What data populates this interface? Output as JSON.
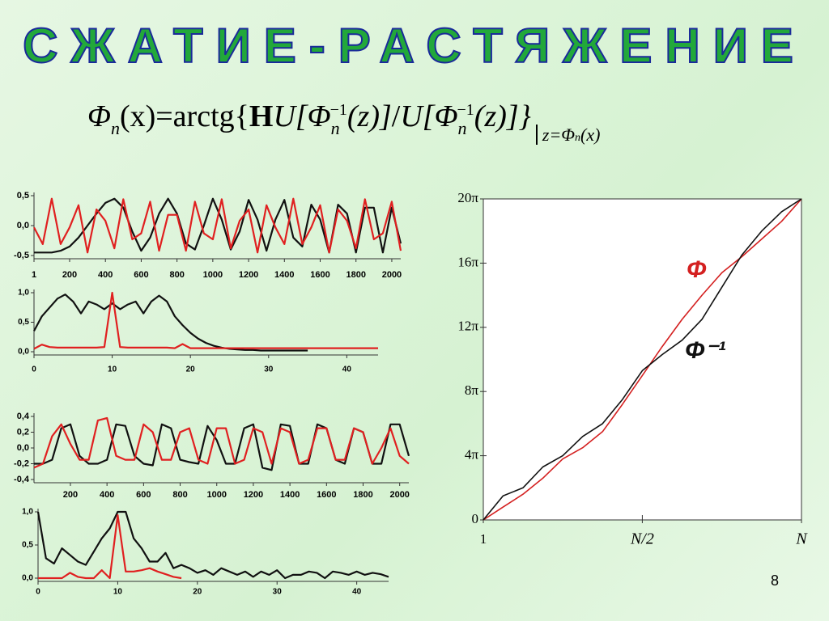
{
  "title": "СЖАТИЕ-РАСТЯЖЕНИЕ",
  "formula": {
    "parts": [
      "Φ",
      "n",
      "(x)=arctg{",
      "H",
      "U[",
      "Φ",
      "n",
      "−1",
      "(z)]",
      "/",
      "U[",
      "Φ",
      "n",
      "−1",
      "(z)]}",
      "z=Φ",
      "n",
      "(x)"
    ]
  },
  "slide_number": "8",
  "chart_data": [
    {
      "type": "line",
      "x": [
        1,
        50,
        100,
        150,
        200,
        250,
        300,
        350,
        400,
        450,
        500,
        550,
        600,
        650,
        700,
        750,
        800,
        850,
        900,
        950,
        1000,
        1050,
        1100,
        1150,
        1200,
        1250,
        1300,
        1350,
        1400,
        1450,
        1500,
        1550,
        1600,
        1650,
        1700,
        1750,
        1800,
        1850,
        1900,
        1950,
        2000,
        2050
      ],
      "xlim": [
        1,
        2050
      ],
      "xticks": [
        1,
        200,
        400,
        600,
        800,
        1000,
        1200,
        1400,
        1600,
        1800,
        2000
      ],
      "ylim": [
        -0.5,
        0.5
      ],
      "yticks": [
        {
          "value": -0.5,
          "label": "-0,5"
        },
        {
          "value": 0,
          "label": "0,0"
        },
        {
          "value": 0.5,
          "label": "0,5"
        }
      ],
      "series": [
        {
          "color": "#111111",
          "values": [
            -0.45,
            -0.45,
            -0.45,
            -0.42,
            -0.35,
            -0.2,
            0,
            0.2,
            0.38,
            0.45,
            0.3,
            -0.1,
            -0.42,
            -0.2,
            0.2,
            0.45,
            0.2,
            -0.3,
            -0.4,
            0,
            0.45,
            0.1,
            -0.4,
            -0.1,
            0.43,
            0.1,
            -0.42,
            0.1,
            0.43,
            -0.2,
            -0.35,
            0.35,
            0.1,
            -0.45,
            0.35,
            0.2,
            -0.45,
            0.3,
            0.3,
            -0.45,
            0.3,
            -0.3
          ]
        },
        {
          "color": "#e02020",
          "values": [
            -0.03,
            -0.31,
            0.45,
            -0.31,
            -0.03,
            0.34,
            -0.45,
            0.27,
            0.08,
            -0.38,
            0.44,
            -0.23,
            -0.13,
            0.4,
            -0.42,
            0.18,
            0.18,
            -0.42,
            0.4,
            -0.13,
            -0.23,
            0.44,
            -0.38,
            0.08,
            0.27,
            -0.45,
            0.34,
            -0.03,
            -0.31,
            0.45,
            -0.31,
            -0.03,
            0.34,
            -0.45,
            0.27,
            0.08,
            -0.38,
            0.44,
            -0.23,
            -0.13,
            0.4,
            -0.42
          ]
        }
      ]
    },
    {
      "type": "line",
      "x": [
        0,
        1,
        2,
        3,
        4,
        5,
        6,
        7,
        8,
        9,
        10,
        11,
        12,
        13,
        14,
        15,
        16,
        17,
        18,
        19,
        20,
        21,
        22,
        23,
        24,
        25,
        26,
        27,
        28,
        29,
        30,
        31,
        32,
        33,
        34,
        35,
        36,
        37,
        38,
        39,
        40,
        41,
        42,
        43,
        44
      ],
      "xlim": [
        0,
        44
      ],
      "xticks": [
        0,
        10,
        20,
        30,
        40
      ],
      "ylim": [
        0,
        1
      ],
      "yticks": [
        {
          "value": 0,
          "label": "0,0"
        },
        {
          "value": 0.5,
          "label": "0,5"
        },
        {
          "value": 1,
          "label": "1,0"
        }
      ],
      "series": [
        {
          "color": "#111111",
          "values": [
            0.35,
            0.6,
            0.75,
            0.9,
            0.97,
            0.85,
            0.65,
            0.85,
            0.8,
            0.72,
            0.82,
            0.72,
            0.8,
            0.85,
            0.65,
            0.85,
            0.95,
            0.85,
            0.6,
            0.45,
            0.32,
            0.22,
            0.15,
            0.1,
            0.07,
            0.05,
            0.04,
            0.03,
            0.03,
            0.02,
            0.02,
            0.02,
            0.02,
            0.02,
            0.02,
            0.02,
            null,
            null,
            null,
            null,
            null,
            null,
            null,
            null,
            null
          ]
        },
        {
          "color": "#e02020",
          "values": [
            0.05,
            0.12,
            0.08,
            0.07,
            0.07,
            0.07,
            0.07,
            0.07,
            0.07,
            0.08,
            1.0,
            0.08,
            0.07,
            0.07,
            0.07,
            0.07,
            0.07,
            0.07,
            0.06,
            0.13,
            0.06,
            0.06,
            0.06,
            0.06,
            0.06,
            0.06,
            0.06,
            0.06,
            0.06,
            0.06,
            0.06,
            0.06,
            0.06,
            0.06,
            0.06,
            0.06,
            0.06,
            0.06,
            0.06,
            0.06,
            0.06,
            0.06,
            0.06,
            0.06,
            0.06
          ]
        }
      ]
    },
    {
      "type": "line",
      "x": [
        1,
        50,
        100,
        150,
        200,
        250,
        300,
        350,
        400,
        450,
        500,
        550,
        600,
        650,
        700,
        750,
        800,
        850,
        900,
        950,
        1000,
        1050,
        1100,
        1150,
        1200,
        1250,
        1300,
        1350,
        1400,
        1450,
        1500,
        1550,
        1600,
        1650,
        1700,
        1750,
        1800,
        1850,
        1900,
        1950,
        2000,
        2050
      ],
      "xlim": [
        1,
        2050
      ],
      "xticks": [
        200,
        400,
        600,
        800,
        1000,
        1200,
        1400,
        1600,
        1800,
        2000
      ],
      "ylim": [
        -0.4,
        0.4
      ],
      "yticks": [
        {
          "value": -0.4,
          "label": "-0,4"
        },
        {
          "value": -0.2,
          "label": "-0,2"
        },
        {
          "value": 0,
          "label": "0,0"
        },
        {
          "value": 0.2,
          "label": "0,2"
        },
        {
          "value": 0.4,
          "label": "0,4"
        }
      ],
      "series": [
        {
          "color": "#111111",
          "values": [
            -0.2,
            -0.2,
            -0.15,
            0.25,
            0.3,
            -0.1,
            -0.2,
            -0.2,
            -0.15,
            0.3,
            0.28,
            -0.1,
            -0.2,
            -0.22,
            0.3,
            0.25,
            -0.15,
            -0.18,
            -0.2,
            0.28,
            0.1,
            -0.2,
            -0.2,
            0.25,
            0.3,
            -0.25,
            -0.28,
            0.3,
            0.28,
            -0.2,
            -0.2,
            0.3,
            0.25,
            -0.15,
            -0.2,
            0.25,
            0.2,
            -0.2,
            -0.2,
            0.3,
            0.3,
            -0.1
          ]
        },
        {
          "color": "#e02020",
          "values": [
            -0.25,
            -0.2,
            0.15,
            0.3,
            0.05,
            -0.15,
            -0.15,
            0.35,
            0.38,
            -0.1,
            -0.15,
            -0.15,
            0.3,
            0.2,
            -0.15,
            -0.15,
            0.2,
            0.25,
            -0.15,
            -0.2,
            0.25,
            0.25,
            -0.2,
            -0.15,
            0.25,
            0.2,
            -0.2,
            0.25,
            0.2,
            -0.2,
            -0.15,
            0.25,
            0.25,
            -0.15,
            -0.15,
            0.25,
            0.2,
            -0.2,
            0.0,
            0.25,
            -0.1,
            -0.2
          ]
        }
      ]
    },
    {
      "type": "line",
      "x": [
        0,
        1,
        2,
        3,
        4,
        5,
        6,
        7,
        8,
        9,
        10,
        11,
        12,
        13,
        14,
        15,
        16,
        17,
        18,
        19,
        20,
        21,
        22,
        23,
        24,
        25,
        26,
        27,
        28,
        29,
        30,
        31,
        32,
        33,
        34,
        35,
        36,
        37,
        38,
        39,
        40,
        41,
        42,
        43,
        44
      ],
      "xlim": [
        0,
        44
      ],
      "xticks": [
        0,
        10,
        20,
        30,
        40
      ],
      "ylim": [
        0,
        1
      ],
      "yticks": [
        {
          "value": 0,
          "label": "0,0"
        },
        {
          "value": 0.5,
          "label": "0,5"
        },
        {
          "value": 1,
          "label": "1,0"
        }
      ],
      "series": [
        {
          "color": "#111111",
          "values": [
            1.0,
            0.3,
            0.22,
            0.45,
            0.35,
            0.25,
            0.2,
            0.4,
            0.6,
            0.75,
            1.0,
            1.0,
            0.6,
            0.45,
            0.25,
            0.25,
            0.38,
            0.15,
            0.2,
            0.15,
            0.08,
            0.12,
            0.05,
            0.15,
            0.1,
            0.05,
            0.1,
            0.02,
            0.1,
            0.05,
            0.12,
            0,
            0.05,
            0.05,
            0.1,
            0.08,
            0,
            0.1,
            0.08,
            0.05,
            0.1,
            0.05,
            0.08,
            0.06,
            0.02
          ]
        },
        {
          "color": "#e02020",
          "values": [
            0,
            0,
            0,
            0,
            0.08,
            0.02,
            0,
            0,
            0.12,
            0,
            0.95,
            0.1,
            0.1,
            0.12,
            0.15,
            0.1,
            0.06,
            0.02,
            0,
            null,
            null,
            null,
            null,
            null,
            null,
            null,
            null,
            null,
            null,
            null,
            null,
            null,
            null,
            null,
            null,
            null,
            null,
            null,
            null,
            null,
            null,
            null,
            null,
            null,
            null
          ]
        }
      ]
    },
    {
      "type": "line",
      "x": [
        1,
        128,
        256,
        384,
        512,
        640,
        768,
        896,
        1024,
        1152,
        1280,
        1408,
        1536,
        1664,
        1792,
        1920,
        2048
      ],
      "xlim": [
        1,
        2048
      ],
      "xticks": [
        1,
        {
          "value": 1024,
          "label": "N/2"
        },
        {
          "value": 2048,
          "label": "N"
        }
      ],
      "ylim": [
        0,
        20
      ],
      "yticks": [
        0,
        {
          "value": 4,
          "label": "4π"
        },
        {
          "value": 8,
          "label": "8π"
        },
        {
          "value": 12,
          "label": "12π"
        },
        {
          "value": 16,
          "label": "16π"
        },
        {
          "value": 20,
          "label": "20π"
        }
      ],
      "series": [
        {
          "name": "Φ",
          "color": "#d42020",
          "values": [
            0,
            0.8,
            1.6,
            2.6,
            3.8,
            4.5,
            5.5,
            7.2,
            9.0,
            10.8,
            12.5,
            14.0,
            15.4,
            16.4,
            17.5,
            18.6,
            20
          ]
        },
        {
          "name": "Φ⁻¹",
          "color": "#111111",
          "values": [
            0,
            1.5,
            2.0,
            3.3,
            4.0,
            5.2,
            6.0,
            7.5,
            9.3,
            10.3,
            11.2,
            12.5,
            14.5,
            16.5,
            18.0,
            19.2,
            20
          ]
        }
      ]
    }
  ]
}
